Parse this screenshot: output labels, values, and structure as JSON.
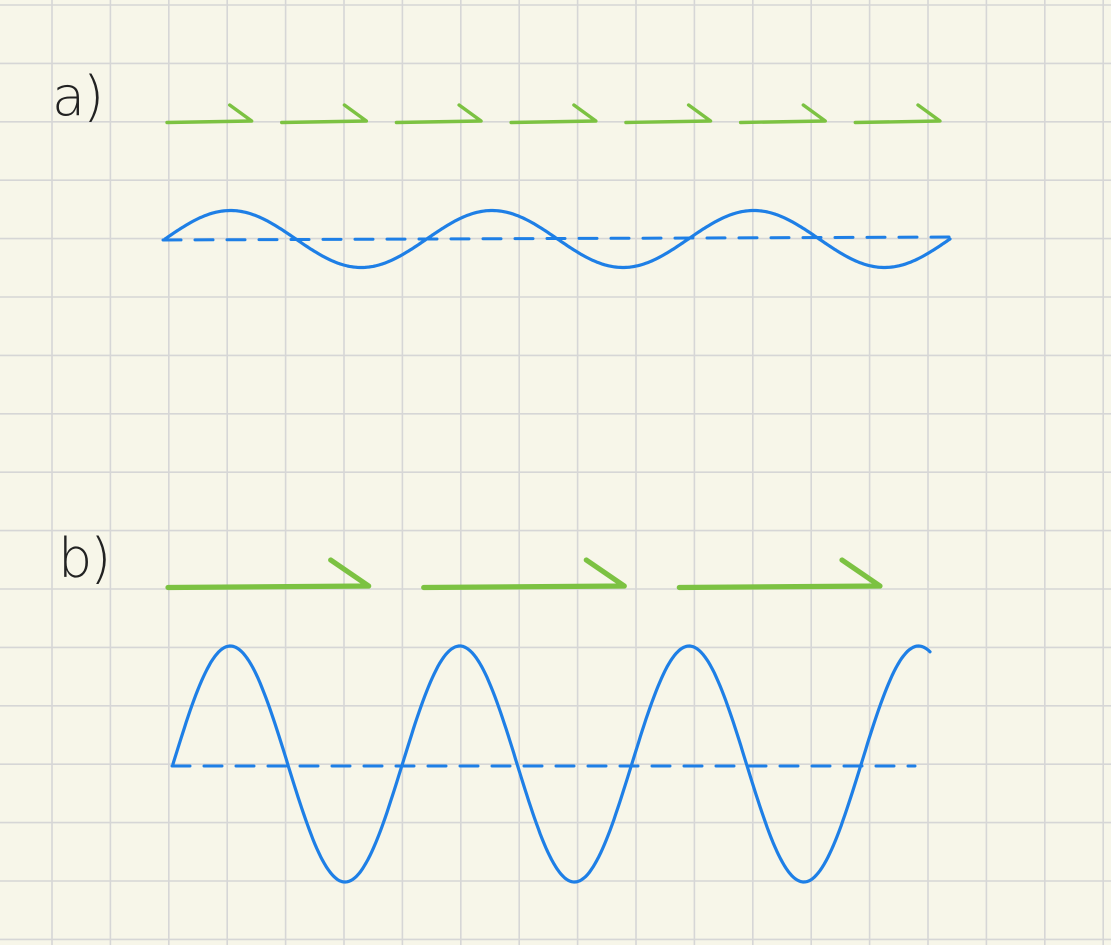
{
  "panels": [
    {
      "label": "a)",
      "wave": {
        "amplitude": 0.5,
        "cycles": 3,
        "color": "#1e7fe6"
      },
      "arrows": {
        "count": 7,
        "color": "#7cc242"
      }
    },
    {
      "label": "b)",
      "wave": {
        "amplitude": 2.0,
        "cycles": 3.3,
        "color": "#1e7fe6"
      },
      "arrows": {
        "count": 3,
        "color": "#7cc242"
      }
    }
  ],
  "paper": {
    "background": "#f7f6e9",
    "grid_color": "#d6d6d6"
  }
}
